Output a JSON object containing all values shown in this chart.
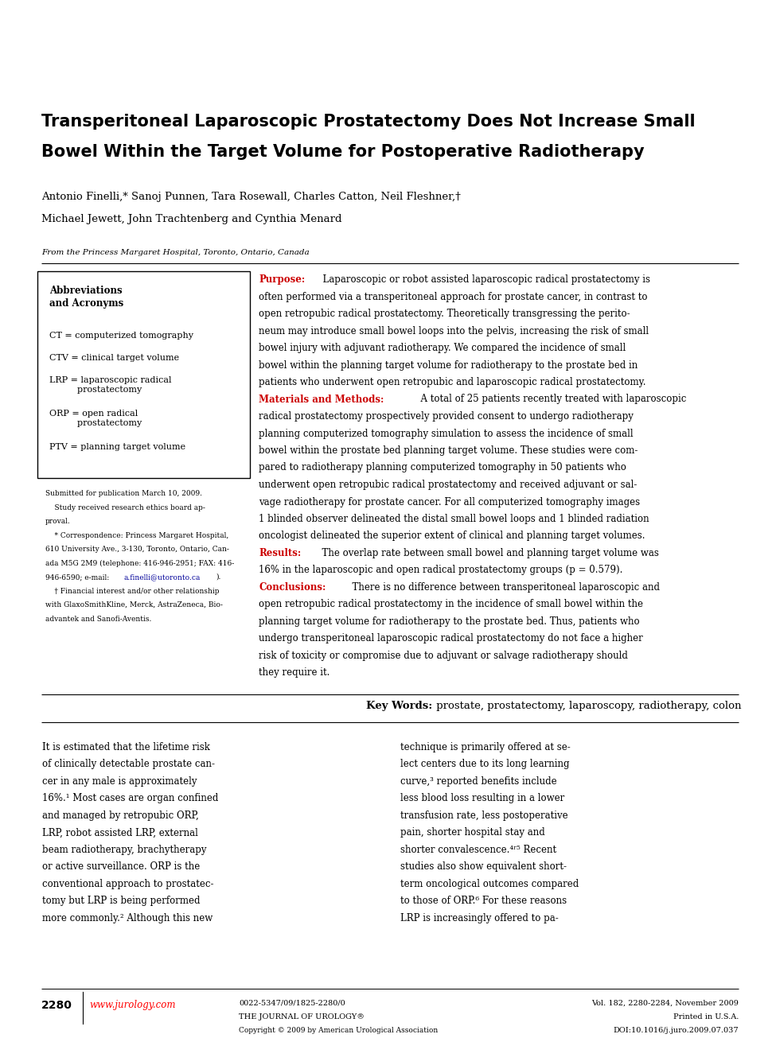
{
  "bg_color": "#ffffff",
  "page_width": 9.75,
  "page_height": 13.05,
  "title_line1": "Transperitoneal Laparoscopic Prostatectomy Does Not Increase Small",
  "title_line2": "Bowel Within the Target Volume for Postoperative Radiotherapy",
  "authors_line1": "Antonio Finelli,* Sanoj Punnen, Tara Rosewall, Charles Catton, Neil Fleshner,†",
  "authors_line2": "Michael Jewett, John Trachtenberg and Cynthia Menard",
  "affiliation": "From the Princess Margaret Hospital, Toronto, Ontario, Canada",
  "abbrev_title": "Abbreviations\nand Acronyms",
  "abbreviations": [
    "CT = computerized tomography",
    "CTV = clinical target volume",
    "LRP = laparoscopic radical\nprostatectomy",
    "ORP = open radical\nprostatectomy",
    "PTV = planning target volume"
  ],
  "footnote1": "Submitted for publication March 10, 2009.",
  "footnote2": "    Study received research ethics board ap-",
  "footnote3": "proval.",
  "footnote4": "    * Correspondence: Princess Margaret Hospital,",
  "footnote5": "610 University Ave., 3-130, Toronto, Ontario, Can-",
  "footnote6": "ada M5G 2M9 (telephone: 416-946-2951; FAX: 416-",
  "footnote7": "946-6590; e-mail: a.finelli@utoronto.ca).",
  "footnote8": "    † Financial interest and/or other relationship",
  "footnote9": "with GlaxoSmithKline, Merck, AstraZeneca, Bio-",
  "footnote10": "advantek and Sanofi-Aventis.",
  "purpose_label": "Purpose:",
  "purpose_body": "  Laparoscopic or robot assisted laparoscopic radical prostatectomy is often performed via a transperitoneal approach for prostate cancer, in contrast to open retropubic radical prostatectomy. Theoretically transgressing the peritoneum may introduce small bowel loops into the pelvis, increasing the risk of small bowel injury with adjuvant radiotherapy. We compared the incidence of small bowel within the planning target volume for radiotherapy to the prostate bed in patients who underwent open retropubic and laparoscopic radical prostatectomy.",
  "methods_label": "Materials and Methods:",
  "methods_body": "  A total of 25 patients recently treated with laparoscopic radical prostatectomy prospectively provided consent to undergo radiotherapy planning computerized tomography simulation to assess the incidence of small bowel within the prostate bed planning target volume. These studies were compared to radiotherapy planning computerized tomography in 50 patients who underwent open retropubic radical prostatectomy and received adjuvant or salvage radiotherapy for prostate cancer. For all computerized tomography images 1 blinded observer delineated the distal small bowel loops and 1 blinded radiation oncologist delineated the superior extent of clinical and planning target volumes.",
  "results_label": "Results:",
  "results_body": "  The overlap rate between small bowel and planning target volume was 16% in the laparoscopic and open radical prostatectomy groups (p = 0.579).",
  "conclusions_label": "Conclusions:",
  "conclusions_body": "  There is no difference between transperitoneal laparoscopic and open retropubic radical prostatectomy in the incidence of small bowel within the planning target volume for radiotherapy to the prostate bed. Thus, patients who undergo transperitoneal laparoscopic radical prostatectomy do not face a higher risk of toxicity or compromise due to adjuvant or salvage radiotherapy should they require it.",
  "keywords_label": "Key Words:",
  "keywords_text": " prostate, prostatectomy, laparoscopy, radiotherapy, colon",
  "body_col1_lines": [
    "It is estimated that the lifetime risk",
    "of clinically detectable prostate can-",
    "cer in any male is approximately",
    "16%.¹ Most cases are organ confined",
    "and managed by retropubic ORP,",
    "LRP, robot assisted LRP, external",
    "beam radiotherapy, brachytherapy",
    "or active surveillance. ORP is the",
    "conventional approach to prostatec-",
    "tomy but LRP is being performed",
    "more commonly.² Although this new"
  ],
  "body_col1_line1_caps": "IT IS ESTIMATED THAT THE LIFETIME RISK",
  "body_col2_lines": [
    "technique is primarily offered at se-",
    "lect centers due to its long learning",
    "curve,³ reported benefits include",
    "less blood loss resulting in a lower",
    "transfusion rate, less postoperative",
    "pain, shorter hospital stay and",
    "shorter convalescence.⁴ʳ⁵ Recent",
    "studies also show equivalent short-",
    "term oncological outcomes compared",
    "to those of ORP.⁶ For these reasons",
    "LRP is increasingly offered to pa-"
  ],
  "footer_page_num": "2280",
  "footer_url": "www.jurology.com",
  "footer_center1": "0022-5347/09/1825-2280/0",
  "footer_center2": "THE JOURNAL OF UROLOGY®",
  "footer_center3": "Copyright © 2009 by American Urological Association",
  "footer_right1": "Vol. 182, 2280-2284, November 2009",
  "footer_right2": "Printed in U.S.A.",
  "footer_right3": "DOI:10.1016/j.juro.2009.07.037",
  "red_color": "#cc0000",
  "link_color": "#000099"
}
